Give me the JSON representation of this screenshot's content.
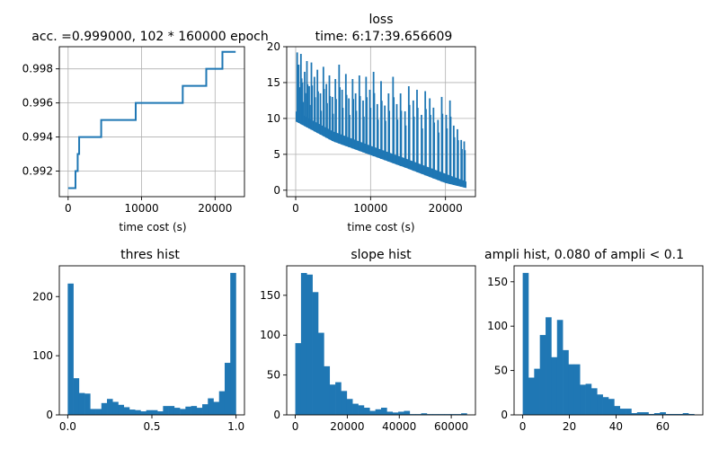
{
  "chart_data": [
    {
      "type": "line",
      "title": "acc. =0.999000, 102 * 160000 epoch",
      "xlabel": "time cost (s)",
      "ylabel": "",
      "grid": true,
      "color": "#1f77b4",
      "xlim": [
        -1200,
        24000
      ],
      "ylim": [
        0.9905,
        0.9993
      ],
      "xticks": [
        0,
        10000,
        20000
      ],
      "xtick_labels": [
        "0",
        "10000",
        "20000"
      ],
      "yticks": [
        0.992,
        0.994,
        0.996,
        0.998
      ],
      "ytick_labels": [
        "0.992",
        "0.994",
        "0.996",
        "0.998"
      ],
      "x": [
        0,
        1000,
        1000,
        1300,
        1300,
        1500,
        1500,
        1650,
        1650,
        4500,
        4500,
        9200,
        9200,
        15300,
        15300,
        15600,
        15600,
        18800,
        18800,
        21000,
        21000,
        22800
      ],
      "y": [
        0.991,
        0.991,
        0.992,
        0.992,
        0.993,
        0.993,
        0.994,
        0.994,
        0.994,
        0.994,
        0.995,
        0.995,
        0.996,
        0.996,
        0.996,
        0.996,
        0.997,
        0.997,
        0.998,
        0.998,
        0.999,
        0.999
      ]
    },
    {
      "type": "line",
      "title": "loss",
      "subtitle": "time: 6:17:39.656609",
      "xlabel": "time cost (s)",
      "ylabel": "",
      "grid": true,
      "color": "#1f77b4",
      "xlim": [
        -1200,
        24000
      ],
      "ylim": [
        -0.9,
        20.0
      ],
      "xticks": [
        0,
        10000,
        20000
      ],
      "xtick_labels": [
        "0",
        "10000",
        "20000"
      ],
      "yticks": [
        0,
        5,
        10,
        15,
        20
      ],
      "ytick_labels": [
        "0",
        "5",
        "10",
        "15",
        "20"
      ],
      "baseline_x": [
        0,
        5000,
        10000,
        15000,
        20000,
        22800
      ],
      "baseline_upper": [
        11.0,
        8.2,
        6.2,
        4.3,
        2.3,
        1.2
      ],
      "baseline_lower": [
        9.6,
        6.8,
        4.9,
        3.0,
        1.0,
        0.3
      ],
      "spikes_x": [
        200,
        400,
        700,
        900,
        1200,
        1500,
        1800,
        2100,
        2500,
        2900,
        3300,
        3700,
        4100,
        4500,
        4900,
        5300,
        5800,
        6200,
        6700,
        7100,
        7600,
        8000,
        8500,
        9000,
        9400,
        9900,
        10400,
        10900,
        11400,
        11900,
        12400,
        13000,
        13500,
        14000,
        14600,
        15100,
        15700,
        16200,
        16800,
        17300,
        17900,
        18400,
        19000,
        19500,
        20100,
        20600,
        21100,
        21600,
        22100,
        22500
      ],
      "spikes_y": [
        19.2,
        17.5,
        19.0,
        15.0,
        16.5,
        18.0,
        14.5,
        17.8,
        15.8,
        16.8,
        13.5,
        17.2,
        14.8,
        16.0,
        13.0,
        15.5,
        17.5,
        14.0,
        16.2,
        12.8,
        15.5,
        13.5,
        16.0,
        12.5,
        15.8,
        14.0,
        16.5,
        12.0,
        15.2,
        11.8,
        13.5,
        15.8,
        12.0,
        13.5,
        11.0,
        14.5,
        12.5,
        14.0,
        10.5,
        13.8,
        12.8,
        11.5,
        9.8,
        13.0,
        10.5,
        12.5,
        9.0,
        8.5,
        7.0,
        6.8
      ]
    },
    {
      "type": "bar",
      "title": "thres hist",
      "xlabel": "",
      "ylabel": "",
      "color": "#1f77b4",
      "bin_start": 0.0,
      "bin_width": 0.0333,
      "values": [
        222,
        62,
        37,
        36,
        10,
        10,
        20,
        27,
        22,
        17,
        13,
        9,
        8,
        6,
        8,
        8,
        6,
        15,
        15,
        12,
        10,
        14,
        15,
        12,
        18,
        28,
        22,
        40,
        88,
        240
      ],
      "xlim": [
        -0.05,
        1.05
      ],
      "ylim": [
        0,
        252
      ],
      "xticks": [
        0.0,
        0.5,
        1.0
      ],
      "xtick_labels": [
        "0.0",
        "0.5",
        "1.0"
      ],
      "yticks": [
        0,
        100,
        200
      ],
      "ytick_labels": [
        "0",
        "100",
        "200"
      ]
    },
    {
      "type": "bar",
      "title": "slope hist",
      "xlabel": "",
      "ylabel": "",
      "color": "#1f77b4",
      "bin_start": 0,
      "bin_width": 2200,
      "values": [
        90,
        178,
        176,
        154,
        103,
        61,
        38,
        41,
        30,
        20,
        14,
        12,
        9,
        5,
        7,
        9,
        4,
        3,
        4,
        5,
        1,
        1,
        2,
        1,
        1,
        1,
        1,
        1,
        1,
        2
      ],
      "xlim": [
        -3300,
        69300
      ],
      "ylim": [
        0,
        187
      ],
      "xticks": [
        0,
        20000,
        40000,
        60000
      ],
      "xtick_labels": [
        "0",
        "20000",
        "40000",
        "60000"
      ],
      "yticks": [
        0,
        50,
        100,
        150
      ],
      "ytick_labels": [
        "0",
        "50",
        "100",
        "150"
      ]
    },
    {
      "type": "bar",
      "title": "ampli hist, 0.080 of ampli < 0.1",
      "xlabel": "",
      "ylabel": "",
      "color": "#1f77b4",
      "bin_start": 0,
      "bin_width": 2.45,
      "values": [
        160,
        42,
        52,
        90,
        110,
        65,
        107,
        73,
        57,
        57,
        34,
        35,
        30,
        23,
        20,
        18,
        10,
        7,
        7,
        2,
        3,
        3,
        1,
        2,
        3,
        1,
        1,
        1,
        2,
        1
      ],
      "xlim": [
        -3.7,
        77.2
      ],
      "ylim": [
        0,
        168
      ],
      "xticks": [
        0,
        20,
        40,
        60
      ],
      "xtick_labels": [
        "0",
        "20",
        "40",
        "60"
      ],
      "yticks": [
        0,
        50,
        100,
        150
      ],
      "ytick_labels": [
        "0",
        "50",
        "100",
        "150"
      ]
    }
  ]
}
